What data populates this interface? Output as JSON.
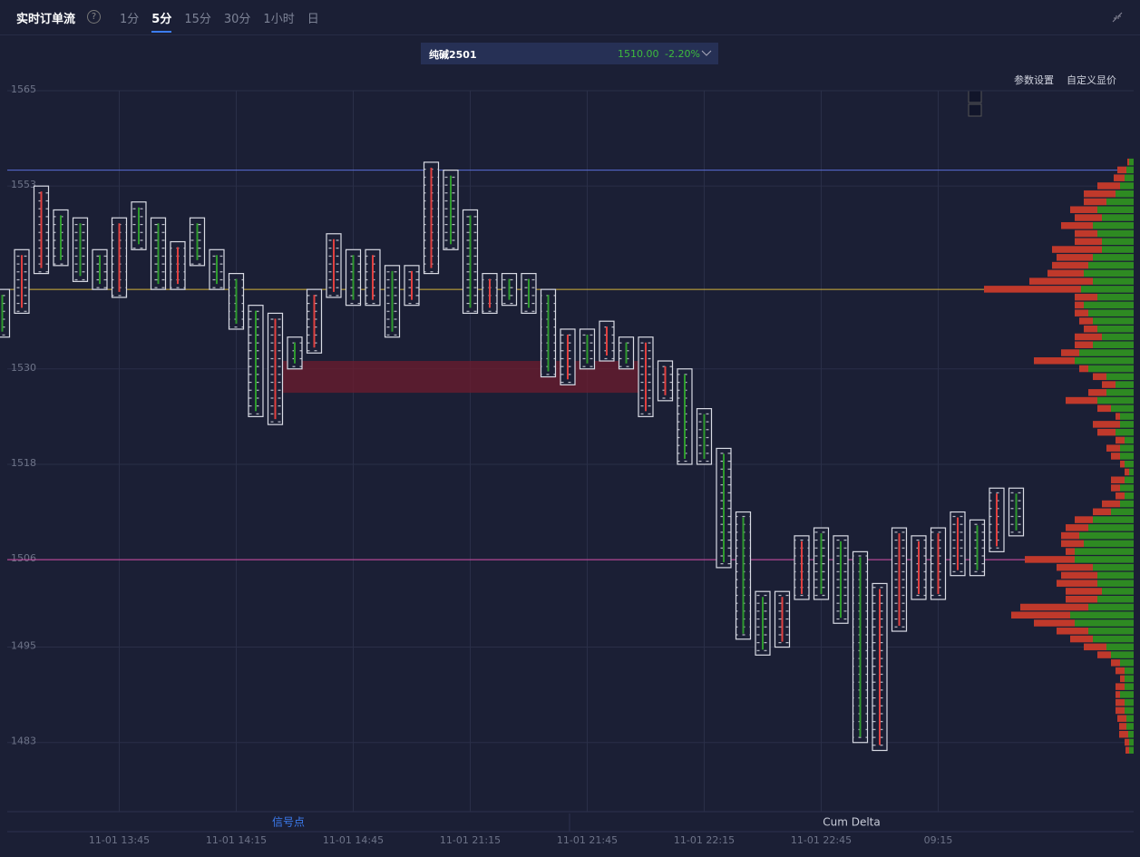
{
  "header": {
    "title": "实时订单流",
    "help": "?",
    "tabs": [
      "1分",
      "5分",
      "15分",
      "30分",
      "1小时",
      "日"
    ],
    "symbol": "纯碱2501",
    "price": "1510.00",
    "change": "-2.20%",
    "settings": "参数设置",
    "custom_price": "自定义显价"
  },
  "bottom_tabs": [
    "信号点",
    "Cum Delta"
  ],
  "chart_data": {
    "type": "footprint",
    "categories": [
      null,
      null,
      null,
      null,
      null,
      null,
      "11-01 13:45",
      null,
      null,
      null,
      null,
      null,
      "11-01 14:15",
      null,
      null,
      null,
      null,
      null,
      "11-01 14:45",
      null,
      null,
      null,
      null,
      null,
      "11-01 21:15",
      null,
      null,
      null,
      null,
      null,
      "11-01 21:45",
      null,
      null,
      null,
      null,
      null,
      "11-01 22:15",
      null,
      null,
      null,
      null,
      null,
      "11-01 22:45",
      null,
      null,
      null,
      null,
      null,
      "09:15",
      null,
      null,
      null,
      null
    ],
    "high": [
      1540,
      1545,
      1553,
      1550,
      1549,
      1545,
      1549,
      1551,
      1549,
      1546,
      1549,
      1545,
      1542,
      1538,
      1537,
      1534,
      1540,
      1547,
      1545,
      1545,
      1543,
      1543,
      1556,
      1555,
      1550,
      1542,
      1542,
      1542,
      1540,
      1535,
      1535,
      1536,
      1534,
      1534,
      1531,
      1530,
      1525,
      1520,
      1512,
      1502,
      1502,
      1509,
      1510,
      1509,
      1507,
      1503,
      1510,
      1509,
      1510,
      1512,
      1511,
      1515,
      1515
    ],
    "low": [
      1534,
      1537,
      1542,
      1543,
      1541,
      1540,
      1539,
      1545,
      1540,
      1540,
      1543,
      1540,
      1535,
      1524,
      1523,
      1530,
      1532,
      1539,
      1538,
      1538,
      1534,
      1538,
      1542,
      1545,
      1537,
      1537,
      1538,
      1537,
      1529,
      1528,
      1530,
      1531,
      1530,
      1524,
      1526,
      1518,
      1518,
      1505,
      1496,
      1494,
      1495,
      1501,
      1501,
      1498,
      1483,
      1482,
      1497,
      1501,
      1501,
      1504,
      1504,
      1507,
      1509
    ],
    "colors": [
      "#2e9a2e",
      "#e04040",
      "#e04040",
      "#2e9a2e",
      "#2e9a2e",
      "#2e9a2e",
      "#e04040",
      "#2e9a2e",
      "#2e9a2e",
      "#e04040",
      "#2e9a2e",
      "#2e9a2e",
      "#2e9a2e",
      "#2e9a2e",
      "#e04040",
      "#2e9a2e",
      "#e04040",
      "#e04040",
      "#2e9a2e",
      "#e04040",
      "#2e9a2e",
      "#e04040",
      "#e04040",
      "#2e9a2e",
      "#2e9a2e",
      "#e04040",
      "#2e9a2e",
      "#2e9a2e",
      "#2e9a2e",
      "#e04040",
      "#2e9a2e",
      "#e04040",
      "#2e9a2e",
      "#e04040",
      "#e04040",
      "#2e9a2e",
      "#2e9a2e",
      "#2e9a2e",
      "#2e9a2e",
      "#2e9a2e",
      "#e04040",
      "#e04040",
      "#2e9a2e",
      "#2e9a2e",
      "#2e9a2e",
      "#e04040",
      "#e04040",
      "#e04040",
      "#e04040",
      "#e04040",
      "#2e9a2e",
      "#e04040",
      "#2e9a2e"
    ],
    "ylim": [
      1474.3,
      1565
    ],
    "yticks": [
      1565,
      1553,
      1530,
      1518,
      1506,
      1495,
      1483
    ],
    "grid": true,
    "hlines": [
      {
        "value": 1555,
        "color": "#5a6fd8"
      },
      {
        "value": 1540,
        "color": "#d4b23a"
      },
      {
        "value": 1506,
        "color": "#d44fa8"
      }
    ],
    "band": [
      1527,
      1531
    ],
    "profile": {
      "buy_color": "#2e8a22",
      "sell_color": "#c0392b",
      "prices": [
        1556,
        1555,
        1554,
        1553,
        1552,
        1551,
        1550,
        1549,
        1548,
        1547,
        1546,
        1545,
        1544,
        1543,
        1542,
        1541,
        1540,
        1539,
        1538,
        1537,
        1536,
        1535,
        1534,
        1533,
        1532,
        1531,
        1530,
        1529,
        1528,
        1527,
        1526,
        1525,
        1524,
        1523,
        1522,
        1521,
        1520,
        1519,
        1518,
        1517,
        1516,
        1515,
        1514,
        1513,
        1512,
        1511,
        1510,
        1509,
        1508,
        1507,
        1506,
        1505,
        1504,
        1503,
        1502,
        1501,
        1500,
        1499,
        1498,
        1497,
        1496,
        1495,
        1494,
        1493,
        1492,
        1491,
        1490,
        1489,
        1488,
        1487,
        1486,
        1485,
        1484,
        1483,
        1482
      ],
      "buy": [
        5,
        8,
        10,
        15,
        20,
        30,
        40,
        35,
        45,
        40,
        35,
        35,
        45,
        50,
        55,
        45,
        58,
        40,
        55,
        50,
        45,
        40,
        35,
        45,
        60,
        65,
        50,
        30,
        20,
        30,
        40,
        25,
        15,
        15,
        20,
        10,
        15,
        15,
        10,
        5,
        10,
        15,
        10,
        15,
        25,
        45,
        50,
        60,
        55,
        65,
        65,
        45,
        40,
        40,
        35,
        40,
        50,
        70,
        65,
        50,
        45,
        30,
        25,
        15,
        10,
        10,
        10,
        15,
        10,
        10,
        8,
        8,
        6,
        5,
        5
      ],
      "sell": [
        2,
        10,
        12,
        25,
        35,
        25,
        30,
        30,
        35,
        25,
        30,
        55,
        40,
        40,
        40,
        70,
        107,
        25,
        10,
        15,
        15,
        15,
        30,
        20,
        20,
        45,
        10,
        15,
        15,
        20,
        35,
        15,
        5,
        30,
        20,
        10,
        15,
        10,
        5,
        5,
        15,
        10,
        10,
        20,
        20,
        20,
        25,
        20,
        25,
        10,
        55,
        40,
        40,
        45,
        40,
        35,
        75,
        65,
        45,
        35,
        25,
        25,
        15,
        10,
        10,
        5,
        10,
        5,
        10,
        10,
        10,
        8,
        10,
        5,
        4
      ]
    }
  }
}
